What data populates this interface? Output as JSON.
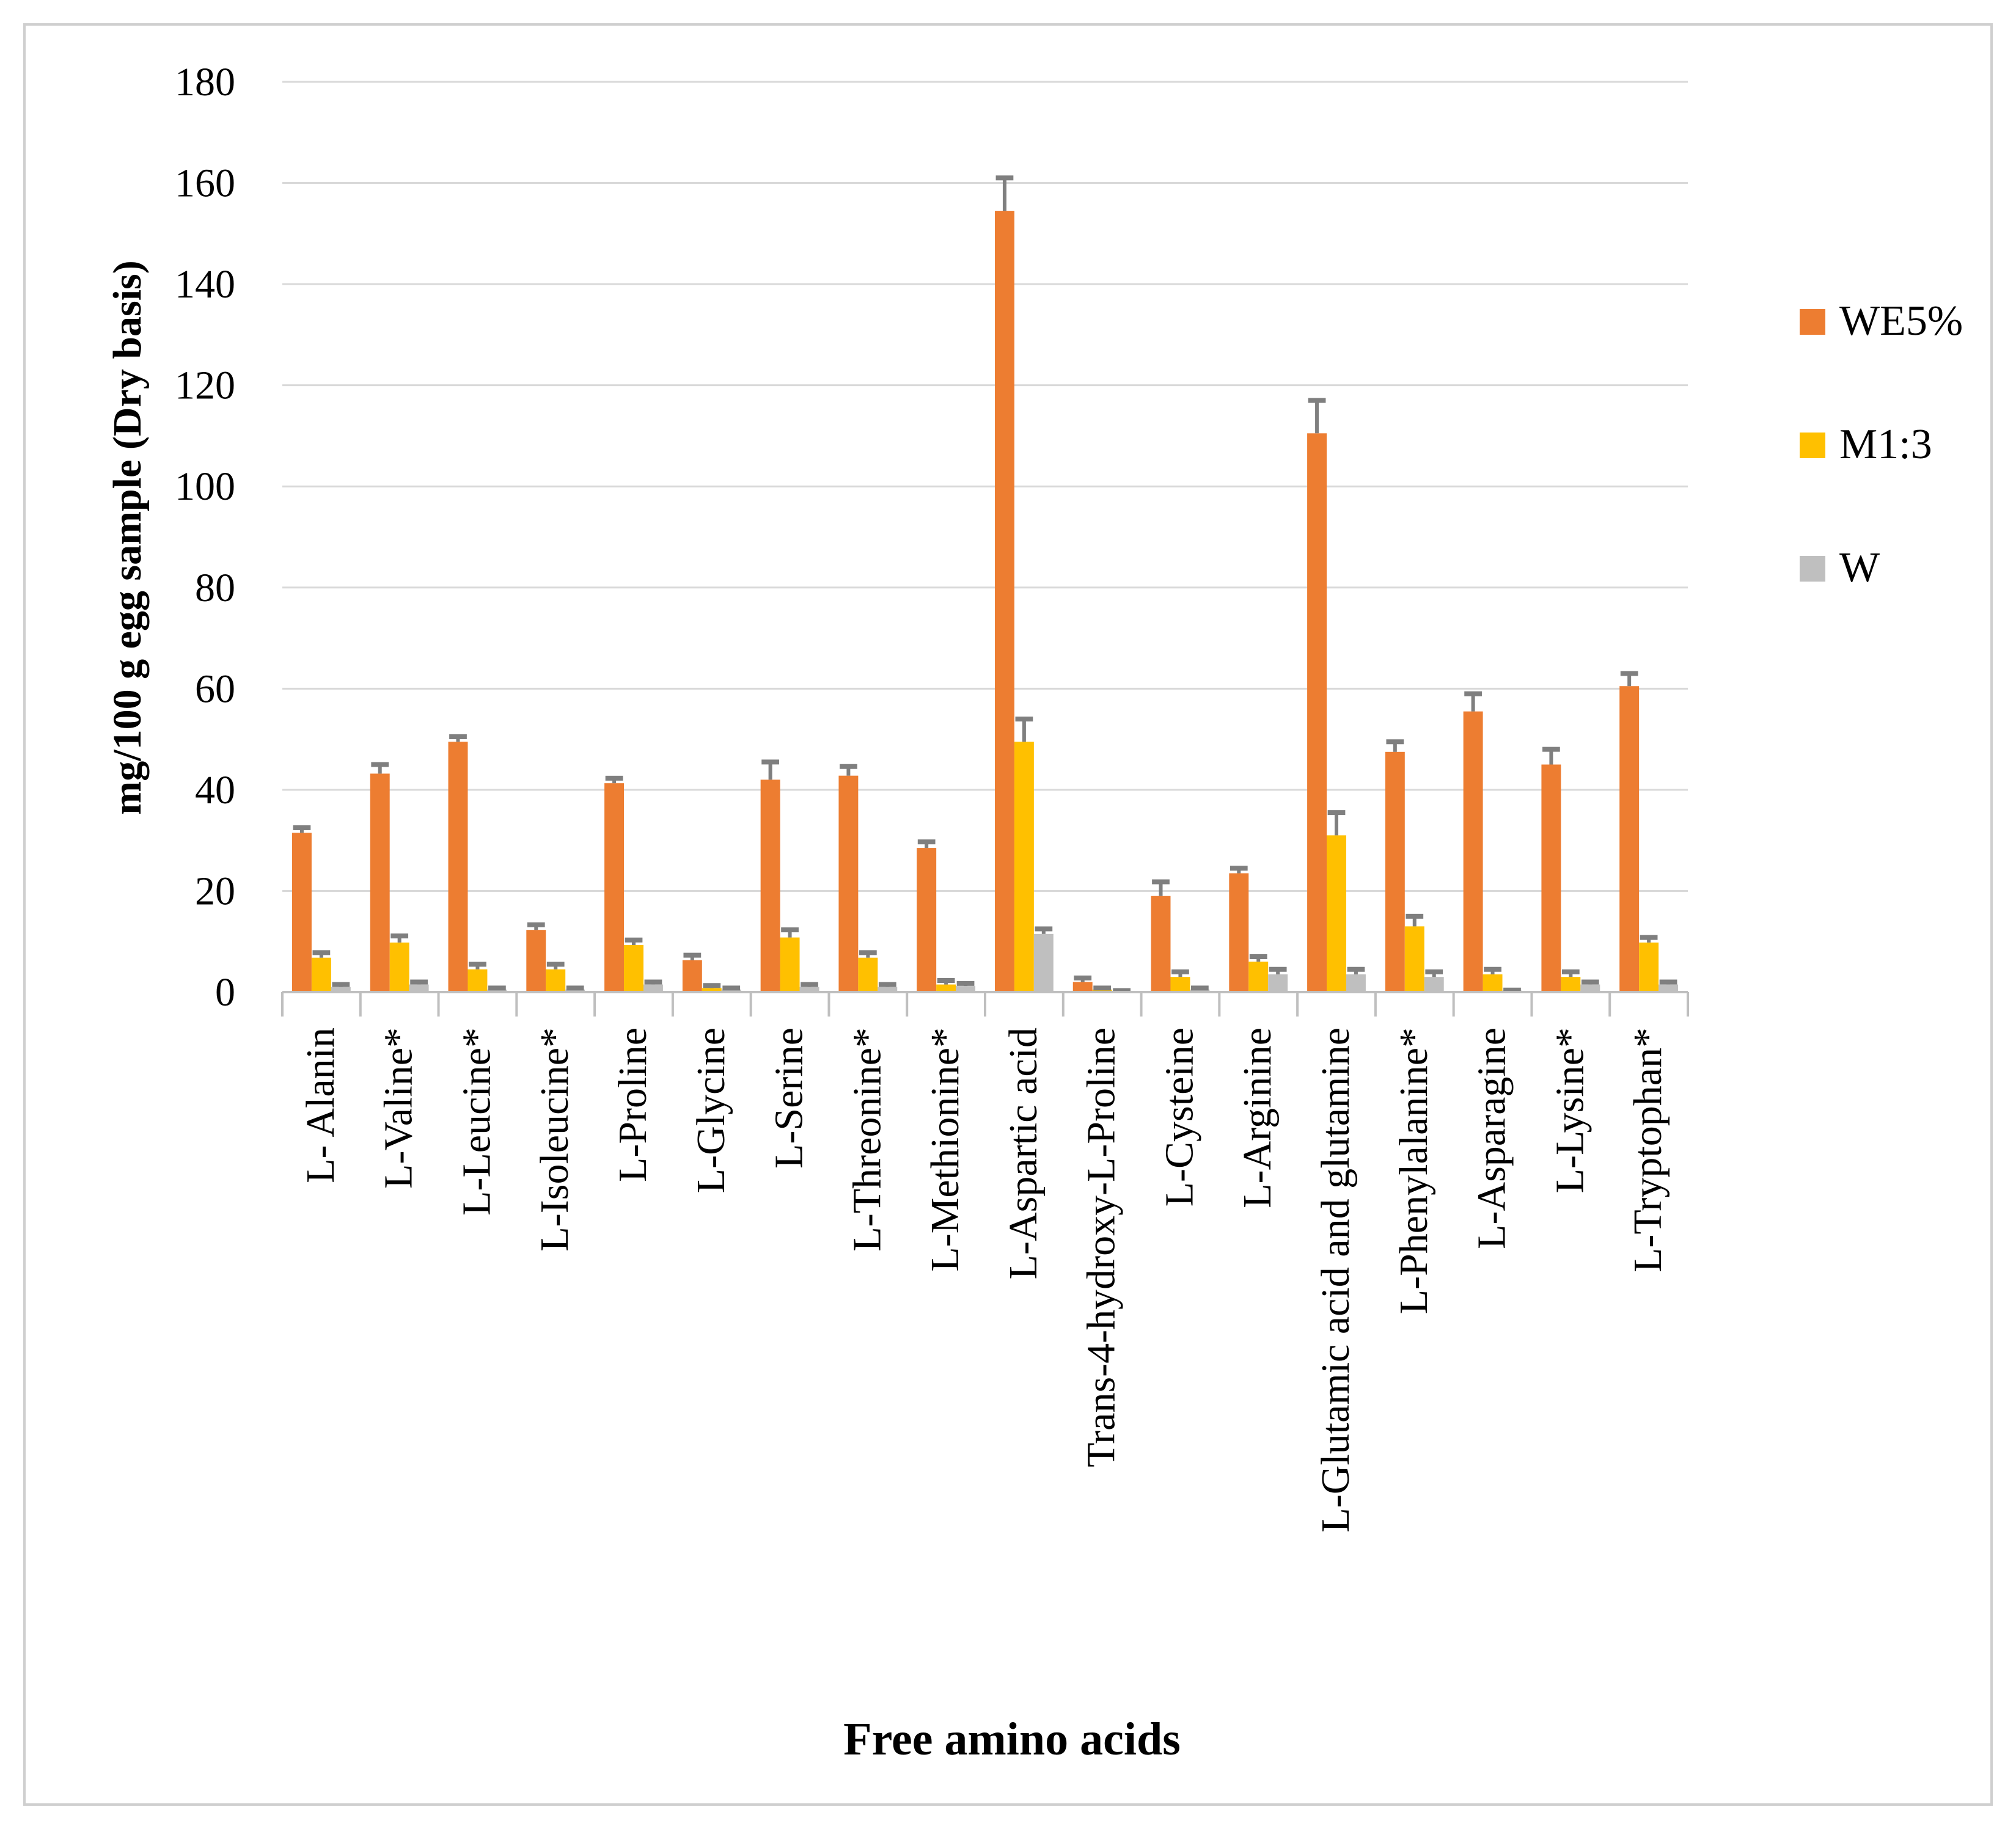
{
  "chart_data": {
    "type": "bar",
    "title": "",
    "xlabel": "Free amino acids",
    "ylabel": "mg/100 g egg sample (Dry basis)",
    "ylim": [
      0,
      180
    ],
    "yticks": [
      0,
      20,
      40,
      60,
      80,
      100,
      120,
      140,
      160,
      180
    ],
    "grid": true,
    "legend_position": "right",
    "categories": [
      "L- Alanin",
      "L-Valine*",
      "L-Leucine*",
      "L-Isoleucine*",
      "L-Proline",
      "L-Glycine",
      "L-Serine",
      "L-Threonine*",
      "L-Methionine*",
      "L-Aspartic acid",
      "Trans-4-hydroxy-L-Proline",
      "L-Cysteine",
      "L-Arginine",
      "L-Glutamic acid and glutamine",
      "L-Phenylalanine*",
      "L-Asparagine",
      "L-Lysine*",
      "L-Tryptophan*"
    ],
    "series": [
      {
        "name": "WE5%",
        "color": "#ED7D31",
        "values": [
          31.5,
          43.2,
          49.5,
          12.3,
          41.3,
          6.3,
          42.0,
          42.8,
          28.5,
          154.5,
          2.0,
          19.0,
          23.5,
          110.5,
          47.5,
          55.5,
          45.0,
          60.5
        ],
        "errors": [
          1.0,
          1.8,
          1.0,
          1.0,
          1.0,
          1.0,
          3.5,
          1.8,
          1.2,
          6.5,
          0.8,
          2.8,
          1.0,
          6.5,
          2.0,
          3.5,
          3.0,
          2.5
        ]
      },
      {
        "name": "M1:3",
        "color": "#FFC000",
        "values": [
          6.8,
          9.8,
          4.5,
          4.5,
          9.3,
          0.8,
          10.8,
          6.8,
          1.5,
          49.5,
          0.5,
          3.0,
          6.0,
          31.0,
          13.0,
          3.5,
          3.0,
          9.8
        ],
        "errors": [
          1.0,
          1.3,
          1.0,
          1.0,
          1.0,
          0.5,
          1.5,
          1.0,
          0.8,
          4.5,
          0.3,
          1.0,
          1.0,
          4.5,
          2.0,
          1.0,
          1.0,
          1.0
        ]
      },
      {
        "name": "W",
        "color": "#BFBFBF",
        "values": [
          1.0,
          1.5,
          0.5,
          0.5,
          1.5,
          0.5,
          1.0,
          1.0,
          1.2,
          11.5,
          0.2,
          0.5,
          3.5,
          3.5,
          3.0,
          0.3,
          1.5,
          1.5
        ],
        "errors": [
          0.5,
          0.5,
          0.3,
          0.3,
          0.5,
          0.3,
          0.5,
          0.5,
          0.5,
          1.0,
          0.1,
          0.3,
          1.0,
          1.0,
          1.0,
          0.1,
          0.5,
          0.5
        ]
      }
    ]
  }
}
